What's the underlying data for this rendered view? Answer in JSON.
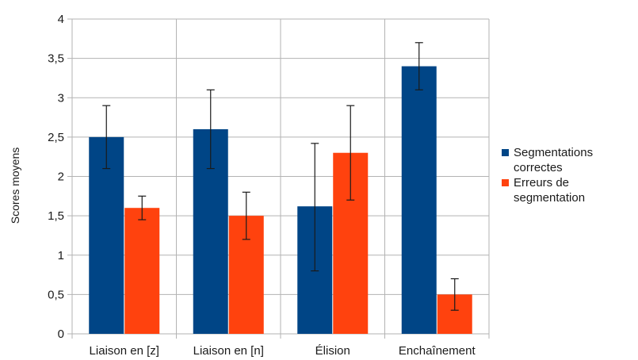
{
  "chart_data": {
    "type": "bar",
    "title": "",
    "xlabel": "",
    "ylabel": "Scores moyens",
    "ylim": [
      0,
      4
    ],
    "yticks": [
      0,
      0.5,
      1,
      1.5,
      2,
      2.5,
      3,
      3.5,
      4
    ],
    "ytick_labels": [
      "0",
      "0,5",
      "1",
      "1,5",
      "2",
      "2,5",
      "3",
      "3,5",
      "4"
    ],
    "categories": [
      "Liaison en [z]",
      "Liaison en [n]",
      "Élision",
      "Enchaînement"
    ],
    "grid": true,
    "legend_position": "right",
    "series": [
      {
        "name": "Segmentations correctes",
        "legend_lines": [
          "Segmentations",
          "correctes"
        ],
        "color": "#004586",
        "values": [
          2.5,
          2.6,
          1.62,
          3.4
        ],
        "error_low": [
          2.1,
          2.1,
          0.8,
          3.1
        ],
        "error_high": [
          2.9,
          3.1,
          2.42,
          3.7
        ]
      },
      {
        "name": "Erreurs de segmentation",
        "legend_lines": [
          "Erreurs de",
          "segmentation"
        ],
        "color": "#ff420e",
        "values": [
          1.6,
          1.5,
          2.3,
          0.5
        ],
        "error_low": [
          1.45,
          1.2,
          1.7,
          0.3
        ],
        "error_high": [
          1.75,
          1.8,
          2.9,
          0.7
        ]
      }
    ]
  }
}
